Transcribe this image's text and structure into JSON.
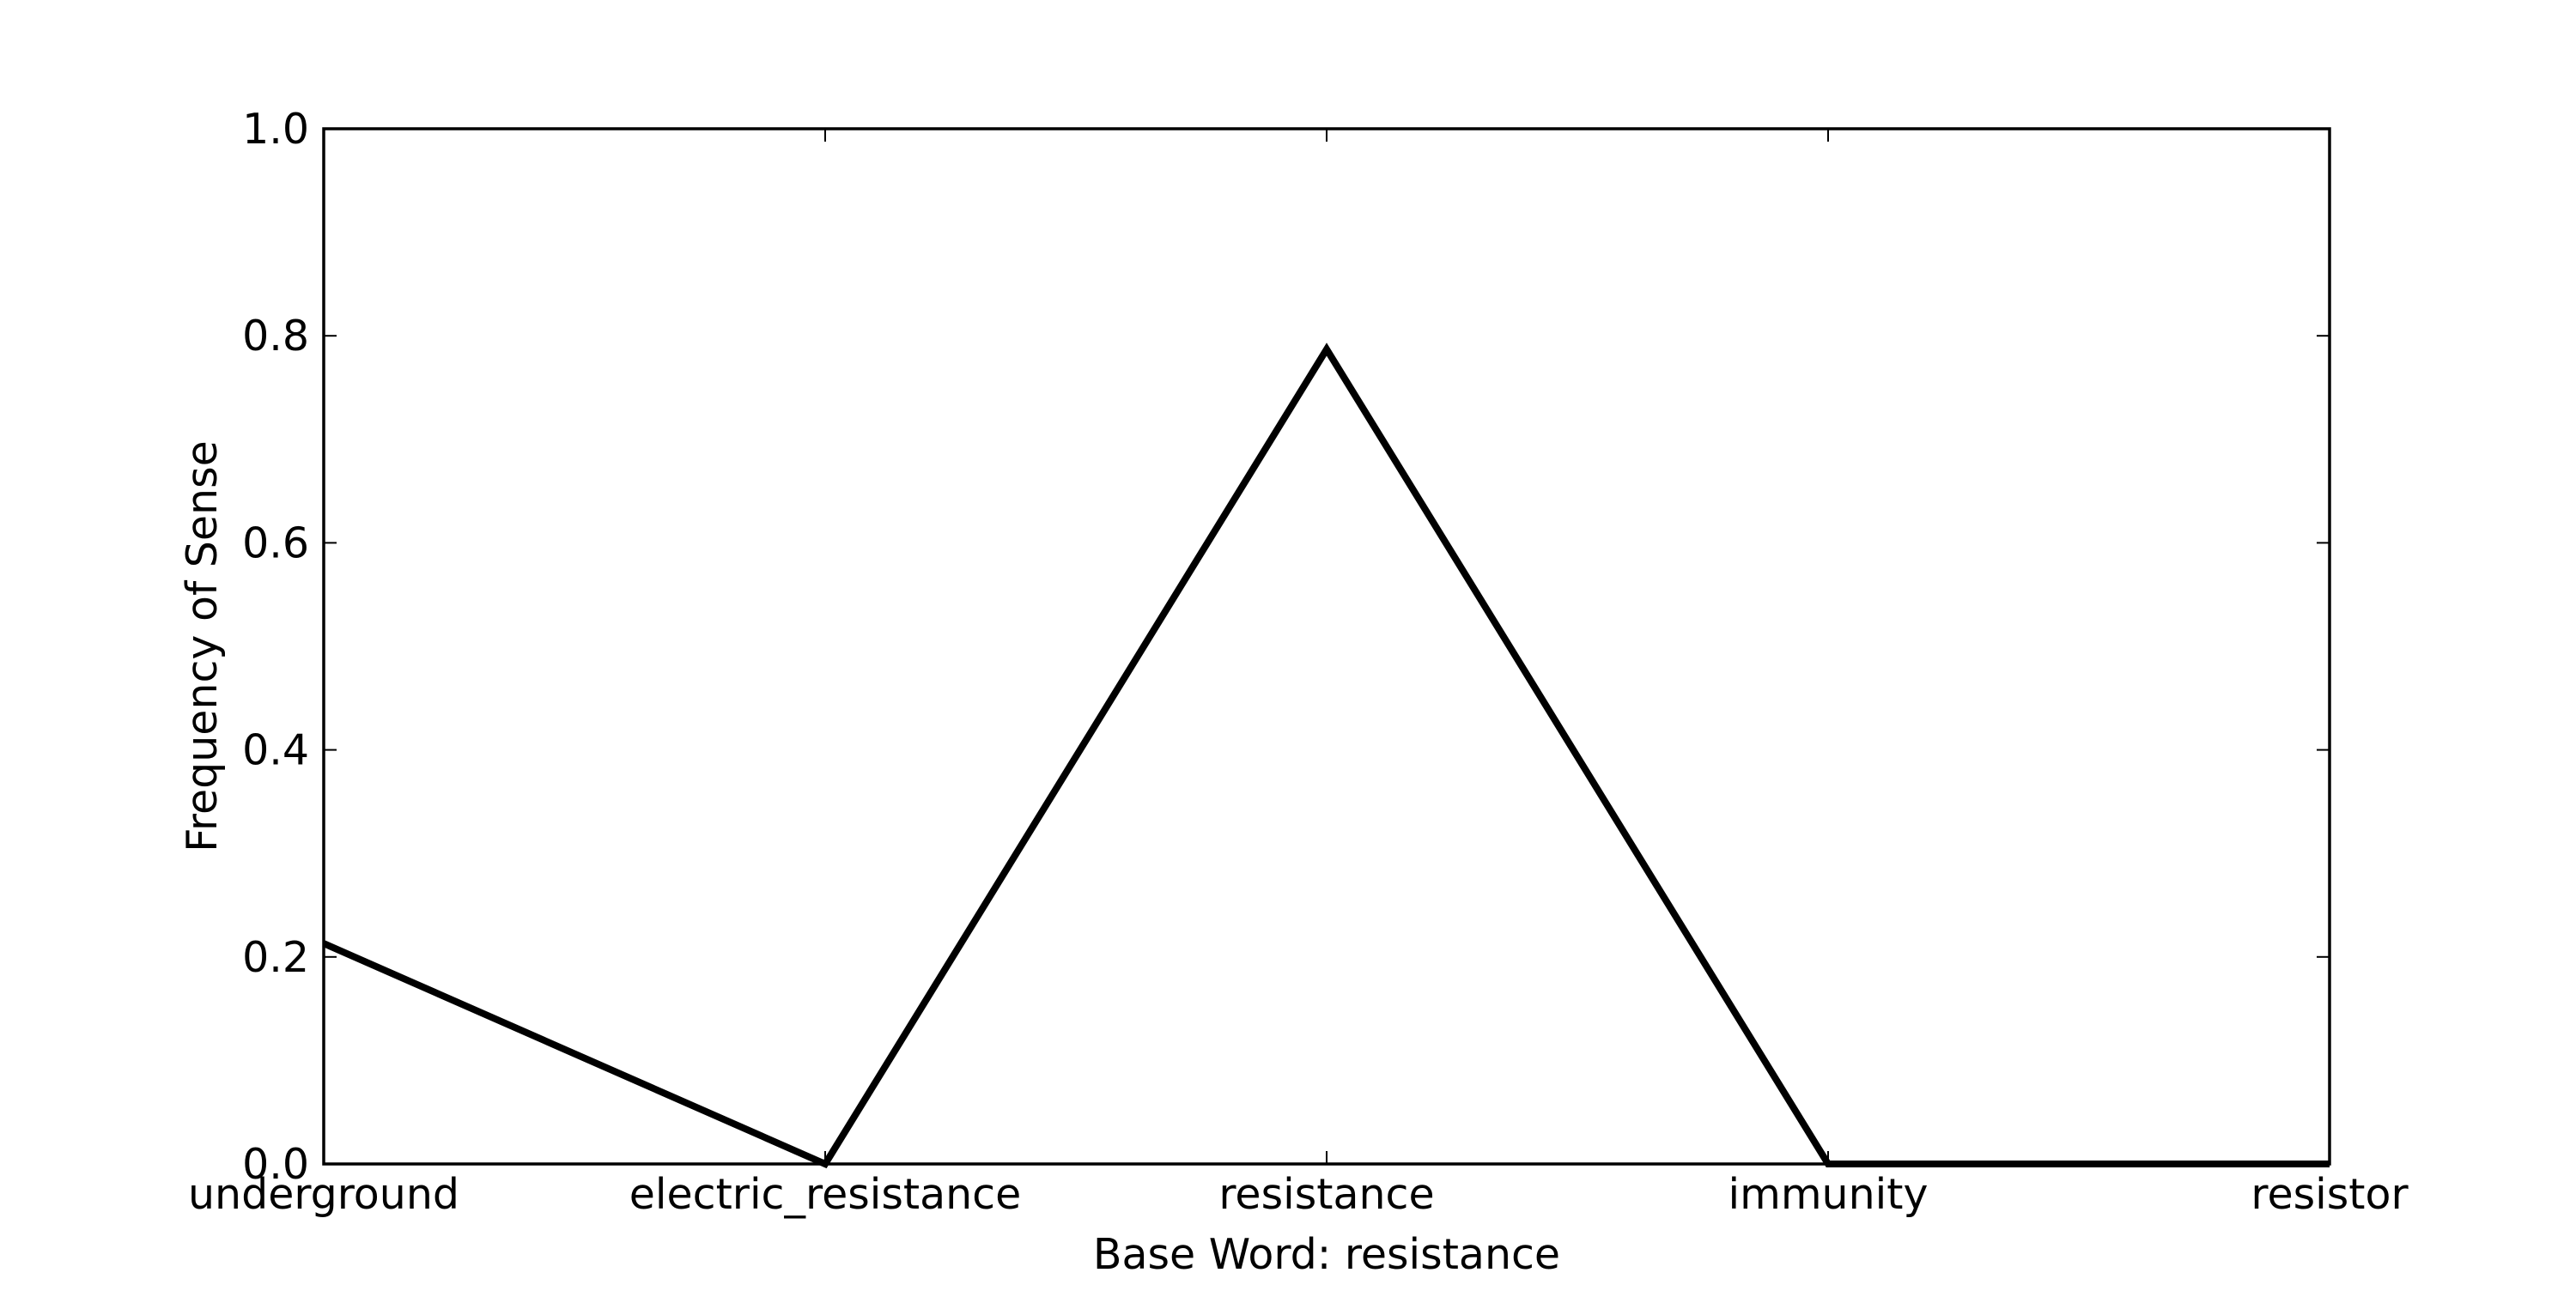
{
  "chart_data": {
    "type": "line",
    "title": "",
    "xlabel": "Base Word: resistance",
    "ylabel": "Frequency of Sense",
    "categories": [
      "underground",
      "electric_resistance",
      "resistance",
      "immunity",
      "resistor"
    ],
    "series": [
      {
        "values": [
          0.213,
          0.0,
          0.787,
          0.0,
          0.0
        ],
        "color": "#000000"
      }
    ],
    "ylim": [
      0.0,
      1.0
    ],
    "yticks": [
      "0.0",
      "0.2",
      "0.4",
      "0.6",
      "0.8",
      "1.0"
    ],
    "grid": false,
    "legend": "none"
  }
}
